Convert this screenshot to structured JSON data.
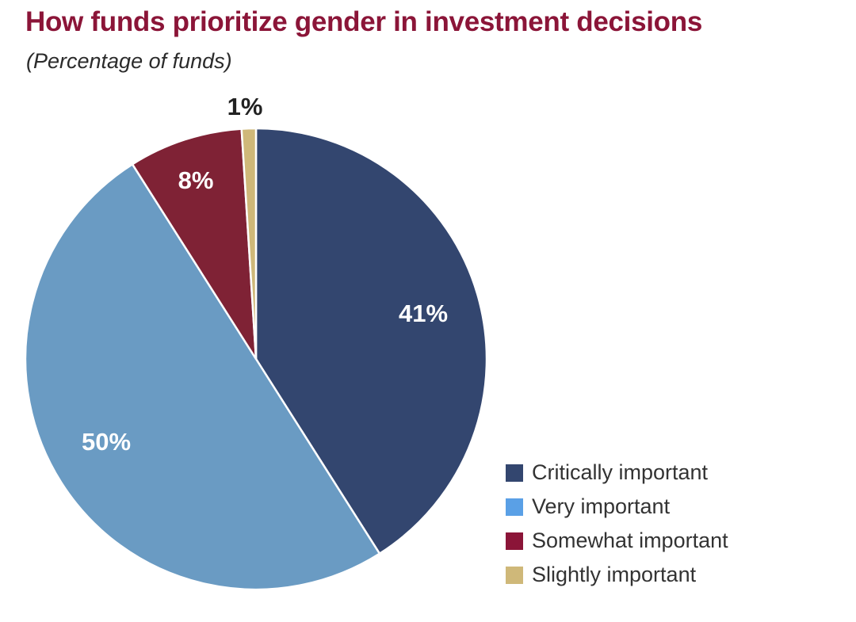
{
  "chart_data": {
    "type": "pie",
    "title": "How funds prioritize gender in investment decisions",
    "subtitle": "(Percentage of funds)",
    "unit": "%",
    "legend_position": "bottom-right",
    "slices": [
      {
        "label": "Critically important",
        "value": 41,
        "color": "#33466f",
        "label_color": "#ffffff"
      },
      {
        "label": "Very important",
        "value": 50,
        "color": "#6a9bc3",
        "label_color": "#ffffff"
      },
      {
        "label": "Somewhat important",
        "value": 8,
        "color": "#7f2235",
        "label_color": "#ffffff"
      },
      {
        "label": "Slightly important",
        "value": 1,
        "color": "#cfb879",
        "label_color": "#222222"
      }
    ],
    "legend": [
      {
        "label": "Critically important",
        "color": "#33466f"
      },
      {
        "label": "Very important",
        "color": "#5aa0e6"
      },
      {
        "label": "Somewhat important",
        "color": "#8b1538"
      },
      {
        "label": "Slightly important",
        "color": "#cfb879"
      }
    ]
  }
}
